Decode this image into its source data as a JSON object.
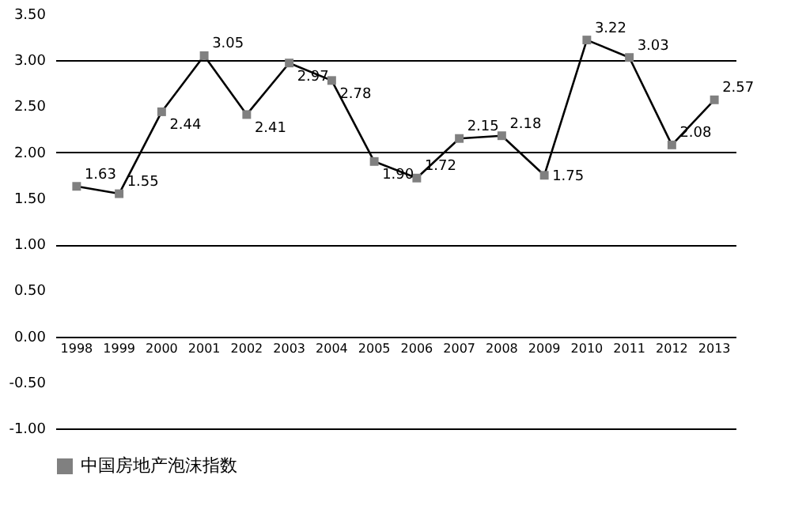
{
  "chart_data": {
    "type": "line",
    "categories": [
      "1998",
      "1999",
      "2000",
      "2001",
      "2002",
      "2003",
      "2004",
      "2005",
      "2006",
      "2007",
      "2008",
      "2009",
      "2010",
      "2011",
      "2012",
      "2013"
    ],
    "series": [
      {
        "name": "中国房地产泡沫指数",
        "color": "#808080",
        "values": [
          1.63,
          1.55,
          2.44,
          3.05,
          2.41,
          2.97,
          2.78,
          1.9,
          1.72,
          2.15,
          2.18,
          1.75,
          3.22,
          3.03,
          2.08,
          2.57
        ],
        "value_labels": [
          "1.63",
          "1.55",
          "2.44",
          "3.05",
          "2.41",
          "2.97",
          "2.78",
          "1.90",
          "1.72",
          "2.15",
          "2.18",
          "1.75",
          "3.22",
          "3.03",
          "2.08",
          "2.57"
        ]
      }
    ],
    "ylim": [
      -1.0,
      3.5
    ],
    "yticks": [
      {
        "value": -1.0,
        "label": "-1.00"
      },
      {
        "value": -0.5,
        "label": "-0.50"
      },
      {
        "value": 0,
        "label": "0.00"
      },
      {
        "value": 0.5,
        "label": "0.50"
      },
      {
        "value": 1.0,
        "label": "1.00"
      },
      {
        "value": 1.5,
        "label": "1.50"
      },
      {
        "value": 2.0,
        "label": "2.00"
      },
      {
        "value": 2.5,
        "label": "2.50"
      },
      {
        "value": 3.0,
        "label": "3.00"
      },
      {
        "value": 3.5,
        "label": "3.50"
      }
    ],
    "grid": "y",
    "legend": "bottom",
    "marker": "square",
    "line_style": "solid"
  }
}
